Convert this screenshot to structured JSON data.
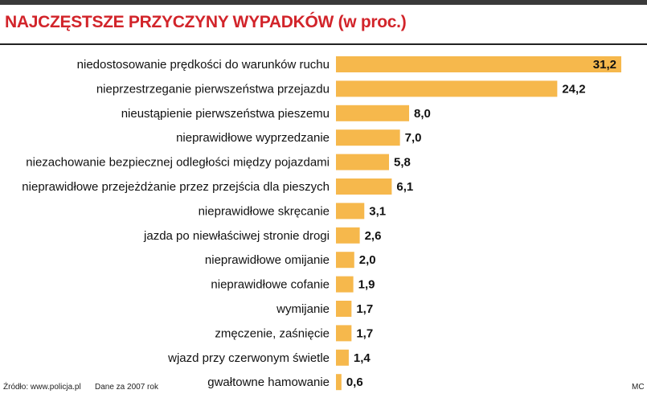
{
  "chart_data": {
    "type": "bar",
    "orientation": "horizontal",
    "title": "NAJCZĘSTSZE PRZYCZYNY WYPADKÓW (w proc.)",
    "xlabel": "",
    "ylabel": "",
    "unit": "%",
    "categories": [
      "niedostosowanie prędkości do warunków ruchu",
      "nieprzestrzeganie pierwszeństwa przejazdu",
      "nieustąpienie pierwszeństwa pieszemu",
      "nieprawidłowe wyprzedzanie",
      "niezachowanie bezpiecznej odległości między pojazdami",
      "nieprawidłowe przejeżdżanie przez przejścia dla pieszych",
      "nieprawidłowe skręcanie",
      "jazda po niewłaściwej stronie drogi",
      "nieprawidłowe omijanie",
      "nieprawidłowe cofanie",
      "wymijanie",
      "zmęczenie, zaśnięcie",
      "wjazd przy czerwonym świetle",
      "gwałtowne hamowanie"
    ],
    "values": [
      31.2,
      24.2,
      8.0,
      7.0,
      5.8,
      6.1,
      3.1,
      2.6,
      2.0,
      1.9,
      1.7,
      1.7,
      1.4,
      0.6
    ],
    "value_labels": [
      "31,2",
      "24,2",
      "8,0",
      "7,0",
      "5,8",
      "6,1",
      "3,1",
      "2,6",
      "2,0",
      "1,9",
      "1,7",
      "1,7",
      "1,4",
      "0,6"
    ],
    "xlim": [
      0,
      31.2
    ],
    "grid": false,
    "legend": "none"
  },
  "colors": {
    "bar": "#f6b84c",
    "title": "#d2242a",
    "text": "#111111"
  },
  "footer": {
    "source": "Źródło: www.policja.pl",
    "note": "Dane za 2007 rok",
    "credit": "MC"
  }
}
